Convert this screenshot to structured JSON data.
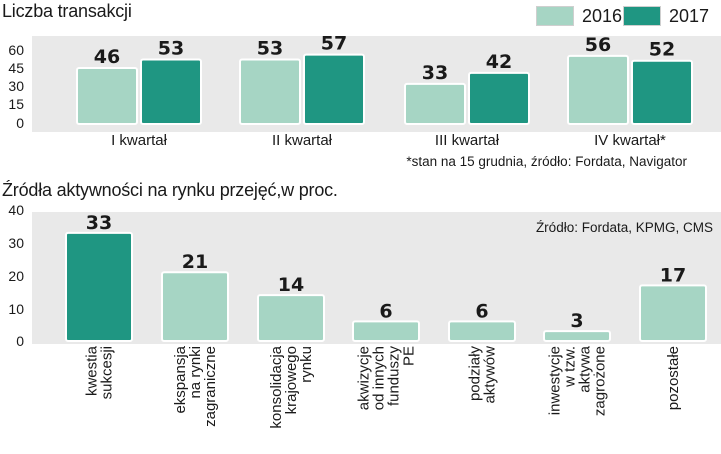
{
  "colors": {
    "light": "#a6d5c4",
    "dark": "#1f9682",
    "panel": "#e9e9e9"
  },
  "legend": {
    "a": "2016",
    "b": "2017"
  },
  "chart_data": [
    {
      "type": "bar",
      "title": "Liczba transakcji",
      "categories": [
        "I kwartał",
        "II kwartał",
        "III kwartał",
        "IV kwartał*"
      ],
      "series": [
        {
          "name": "2016",
          "values": [
            46,
            53,
            33,
            56
          ]
        },
        {
          "name": "2017",
          "values": [
            53,
            57,
            42,
            52
          ]
        }
      ],
      "yticks": [
        "0",
        "15",
        "30",
        "45",
        "60"
      ],
      "ylim": [
        0,
        60
      ],
      "note": "*stan na 15 grudnia, źródło: Fordata, Navigator"
    },
    {
      "type": "bar",
      "title": "Źródła aktywności na rynku przejęć,w proc.",
      "categories": [
        [
          "kwestia",
          "sukcesji"
        ],
        [
          "ekspansja",
          "na rynki",
          "zagraniczne"
        ],
        [
          "konsolidacja",
          "krajowego",
          "rynku"
        ],
        [
          "akwizycje",
          "od innych",
          "funduszy",
          "PE"
        ],
        [
          "podziały",
          "aktywów"
        ],
        [
          "inwestycje",
          "w tzw.",
          "aktywa",
          "zagrożone"
        ],
        [
          "pozostałe"
        ]
      ],
      "values": [
        33,
        21,
        14,
        6,
        6,
        3,
        17
      ],
      "highlight_index": 0,
      "yticks": [
        "0",
        "10",
        "20",
        "30",
        "40"
      ],
      "ylim": [
        0,
        40
      ],
      "source": "Źródło: Fordata, KPMG, CMS"
    }
  ]
}
